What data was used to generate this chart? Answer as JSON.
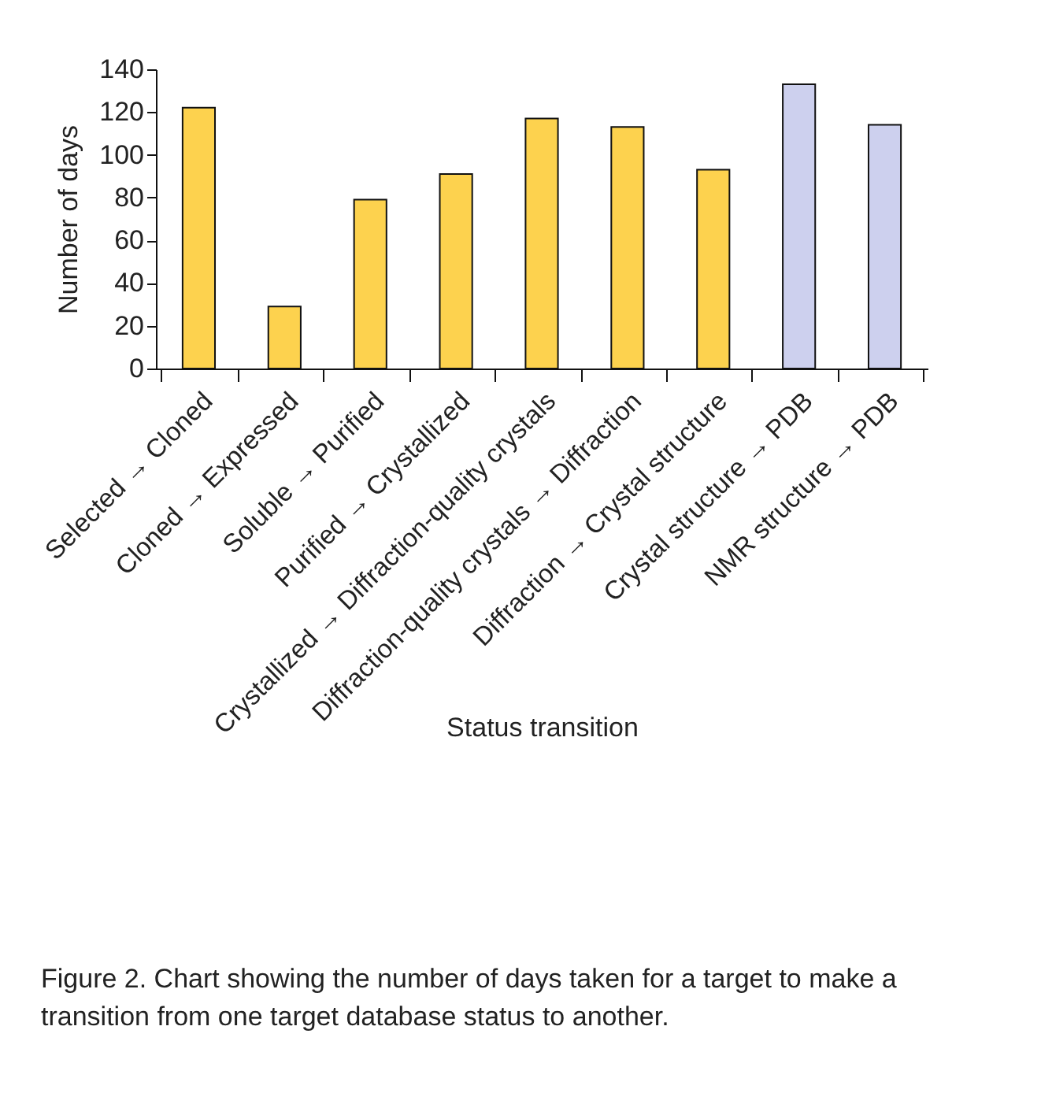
{
  "chart_data": {
    "type": "bar",
    "categories": [
      "Selected → Cloned",
      "Cloned → Expressed",
      "Soluble → Purified",
      "Purified → Crystallized",
      "Crystallized → Diffraction-quality crystals",
      "Diffraction-quality crystals → Diffraction",
      "Diffraction → Crystal structure",
      "Crystal structure → PDB",
      "NMR structure → PDB"
    ],
    "values": [
      122,
      29,
      79,
      91,
      117,
      113,
      93,
      133,
      114
    ],
    "colors": [
      "#fdd24e",
      "#fdd24e",
      "#fdd24e",
      "#fdd24e",
      "#fdd24e",
      "#fdd24e",
      "#fdd24e",
      "#cdd0ee",
      "#cdd0ee"
    ],
    "xlabel": "Status transition",
    "ylabel": "Number of days",
    "ylim": [
      0,
      140
    ],
    "yticks": [
      0,
      20,
      40,
      60,
      80,
      100,
      120,
      140
    ],
    "grid": false,
    "legend": false,
    "annotations": [
      "Figure 2. Chart showing the number of days taken for a target to make a transition from one target database status to another."
    ]
  }
}
